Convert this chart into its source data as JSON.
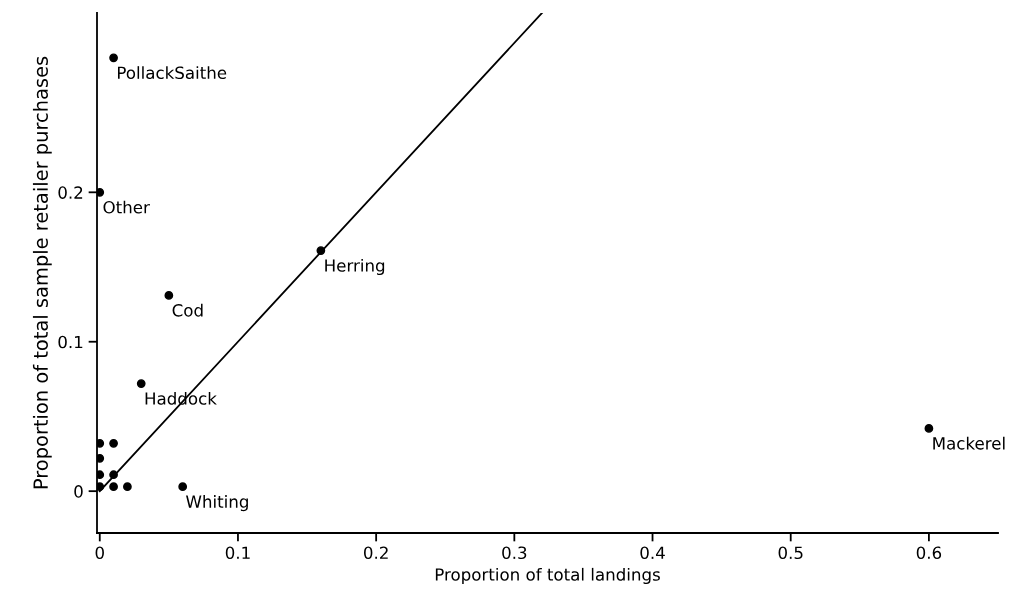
{
  "chart_data": {
    "type": "scatter",
    "xlabel": "Proportion of total landings",
    "ylabel": "Proportion of total sample retailer purchases",
    "xlim": [
      -0.002,
      0.65
    ],
    "ylim": [
      -0.028,
      0.32
    ],
    "xticks": [
      0,
      0.1,
      0.2,
      0.3,
      0.4,
      0.5,
      0.6
    ],
    "yticks": [
      0,
      0.1,
      0.2
    ],
    "grid": false,
    "legend": false,
    "series": [
      {
        "marker": "circle",
        "color": "#000000",
        "x": [
          0.01,
          0,
          0.05,
          0.03,
          0.16,
          0.06,
          0.6,
          0,
          0,
          0,
          0,
          0.01,
          0.01,
          0.01,
          0.02
        ],
        "values": [
          0.29,
          0.2,
          0.131,
          0.072,
          0.161,
          0.003,
          0.042,
          0.003,
          0.011,
          0.022,
          0.032,
          0.032,
          0.011,
          0.003,
          0.003
        ]
      },
      {
        "type": "line",
        "marker": "none",
        "color": "#000000",
        "line_style": "solid",
        "x": [
          0,
          0.32
        ],
        "values": [
          0,
          0.32
        ]
      }
    ],
    "annotations": [
      {
        "text": "PollackSaithe",
        "x": 0.01,
        "y": 0.29
      },
      {
        "text": "Other",
        "x": 0,
        "y": 0.2
      },
      {
        "text": "Cod",
        "x": 0.05,
        "y": 0.131
      },
      {
        "text": "Haddock",
        "x": 0.03,
        "y": 0.072
      },
      {
        "text": "Herring",
        "x": 0.16,
        "y": 0.161
      },
      {
        "text": "Whiting",
        "x": 0.06,
        "y": 0.003
      },
      {
        "text": "Mackerel",
        "x": 0.6,
        "y": 0.042
      }
    ]
  }
}
